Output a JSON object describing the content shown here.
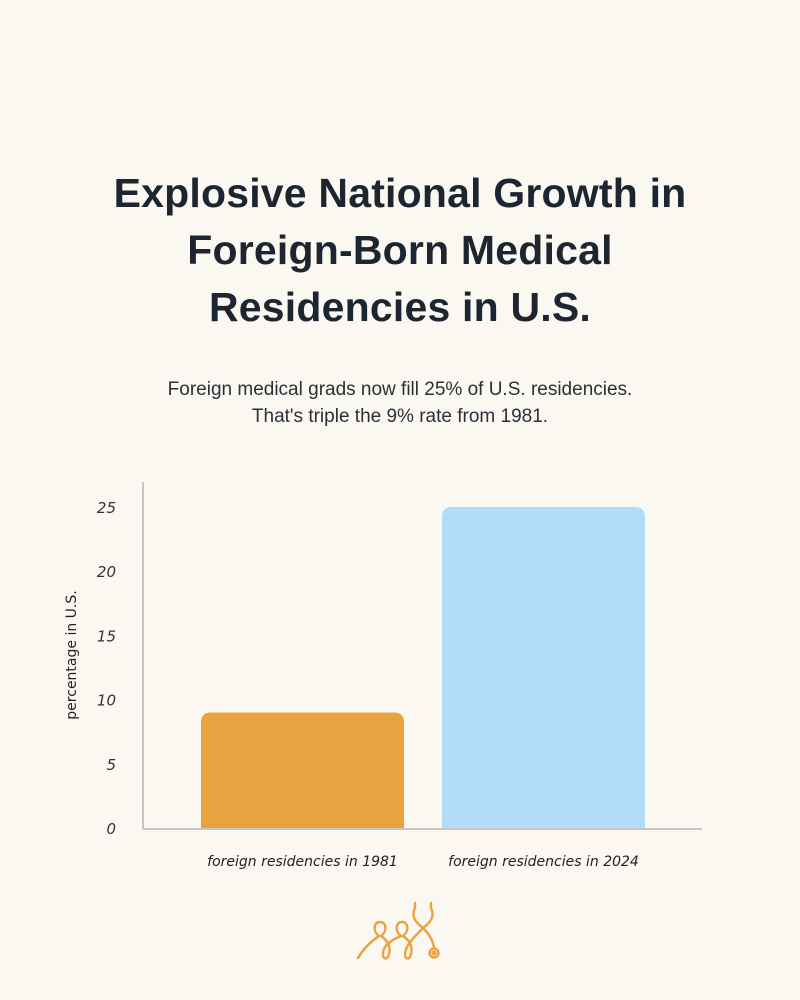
{
  "title_lines": [
    "Explosive National Growth in",
    "Foreign-Born Medical",
    "Residencies in U.S."
  ],
  "subtitle_lines": [
    "Foreign medical grads now fill 25% of U.S. residencies.",
    "That's triple the 9% rate from 1981."
  ],
  "chart_data": {
    "type": "bar",
    "title": "Explosive National Growth in Foreign-Born Medical Residencies in U.S.",
    "categories": [
      "foreign residencies in 1981",
      "foreign residencies in 2024"
    ],
    "values": [
      9,
      25
    ],
    "colors": [
      "#e8a23f",
      "#b3dcfb"
    ],
    "xlabel": "",
    "ylabel": "percentage  in U.S.",
    "ylim": [
      0,
      25
    ],
    "yticks": [
      0,
      5,
      10,
      15,
      20,
      25
    ],
    "grid": false
  },
  "logo": {
    "icon": "family-stethoscope-icon",
    "color": "#e8a23f"
  }
}
